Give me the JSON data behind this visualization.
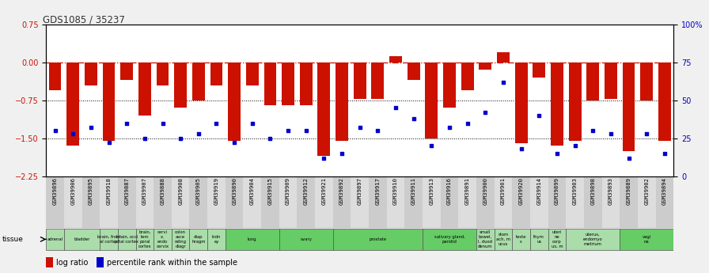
{
  "title": "GDS1085 / 35237",
  "ylim_left": [
    -2.25,
    0.75
  ],
  "yticks_left": [
    0.75,
    0,
    -0.75,
    -1.5,
    -2.25
  ],
  "yticks_right_labels": [
    "100%",
    "75",
    "50",
    "25",
    "0"
  ],
  "yticks_right_positions": [
    0.75,
    0.0,
    -0.75,
    -1.5,
    -2.25
  ],
  "samples": [
    "GSM39896",
    "GSM39906",
    "GSM39895",
    "GSM39918",
    "GSM39887",
    "GSM39907",
    "GSM39888",
    "GSM39908",
    "GSM39905",
    "GSM39919",
    "GSM39890",
    "GSM39904",
    "GSM39915",
    "GSM39909",
    "GSM39912",
    "GSM39921",
    "GSM39892",
    "GSM39897",
    "GSM39917",
    "GSM39910",
    "GSM39911",
    "GSM39913",
    "GSM39916",
    "GSM39891",
    "GSM39900",
    "GSM39901",
    "GSM39920",
    "GSM39914",
    "GSM39899",
    "GSM39903",
    "GSM39898",
    "GSM39893",
    "GSM39889",
    "GSM39902",
    "GSM39894"
  ],
  "log_ratio": [
    -0.55,
    -1.65,
    -0.45,
    -1.55,
    -0.35,
    -1.05,
    -0.45,
    -0.9,
    -0.75,
    -0.45,
    -1.55,
    -0.45,
    -0.85,
    -0.85,
    -0.85,
    -1.85,
    -1.55,
    -0.72,
    -0.72,
    0.12,
    -0.35,
    -1.5,
    -0.9,
    -0.55,
    -0.15,
    0.2,
    -1.6,
    -0.3,
    -1.65,
    -1.55,
    -0.75,
    -0.72,
    -1.75,
    -0.75,
    -1.55
  ],
  "pct_rank": [
    30,
    28,
    32,
    22,
    35,
    25,
    35,
    25,
    28,
    35,
    22,
    35,
    25,
    30,
    30,
    12,
    15,
    32,
    30,
    45,
    38,
    20,
    32,
    35,
    42,
    62,
    18,
    40,
    15,
    20,
    30,
    28,
    12,
    28,
    15
  ],
  "tissue_groups": [
    {
      "label": "adrenal",
      "start": 0,
      "end": 1,
      "color": "#aaddaa"
    },
    {
      "label": "bladder",
      "start": 1,
      "end": 3,
      "color": "#aaddaa"
    },
    {
      "label": "brain, front\nal cortex",
      "start": 3,
      "end": 4,
      "color": "#aaddaa"
    },
    {
      "label": "brain, occi\npital cortex",
      "start": 4,
      "end": 5,
      "color": "#aaddaa"
    },
    {
      "label": "brain,\ntem\nporal\ncortex",
      "start": 5,
      "end": 6,
      "color": "#aaddaa"
    },
    {
      "label": "cervi\nx,\nendo\ncervix",
      "start": 6,
      "end": 7,
      "color": "#aaddaa"
    },
    {
      "label": "colon\nasce\nnding\ndiagr",
      "start": 7,
      "end": 8,
      "color": "#aaddaa"
    },
    {
      "label": "diap\nhragm",
      "start": 8,
      "end": 9,
      "color": "#aaddaa"
    },
    {
      "label": "kidn\ney",
      "start": 9,
      "end": 10,
      "color": "#aaddaa"
    },
    {
      "label": "lung",
      "start": 10,
      "end": 13,
      "color": "#66cc66"
    },
    {
      "label": "ovary",
      "start": 13,
      "end": 16,
      "color": "#66cc66"
    },
    {
      "label": "prostate",
      "start": 16,
      "end": 21,
      "color": "#66cc66"
    },
    {
      "label": "salivary gland,\nparotid",
      "start": 21,
      "end": 24,
      "color": "#66cc66"
    },
    {
      "label": "small\nbowel,\nI, duod\ndenum",
      "start": 24,
      "end": 25,
      "color": "#aaddaa"
    },
    {
      "label": "stom\nach, m\nucus",
      "start": 25,
      "end": 26,
      "color": "#aaddaa"
    },
    {
      "label": "teste\ns",
      "start": 26,
      "end": 27,
      "color": "#aaddaa"
    },
    {
      "label": "thym\nus",
      "start": 27,
      "end": 28,
      "color": "#aaddaa"
    },
    {
      "label": "uteri\nne\ncorp\nus, m",
      "start": 28,
      "end": 29,
      "color": "#aaddaa"
    },
    {
      "label": "uterus,\nendomyo\nmetrium",
      "start": 29,
      "end": 32,
      "color": "#aaddaa"
    },
    {
      "label": "vagi\nna",
      "start": 32,
      "end": 35,
      "color": "#66cc66"
    }
  ],
  "bar_color": "#cc1100",
  "dot_color": "#0000cc",
  "left_tick_color": "#cc1100",
  "right_tick_color": "#0000cc",
  "bg_color": "#f0f0f0",
  "plot_bg": "#ffffff",
  "label_bg_odd": "#cccccc",
  "label_bg_even": "#dddddd"
}
